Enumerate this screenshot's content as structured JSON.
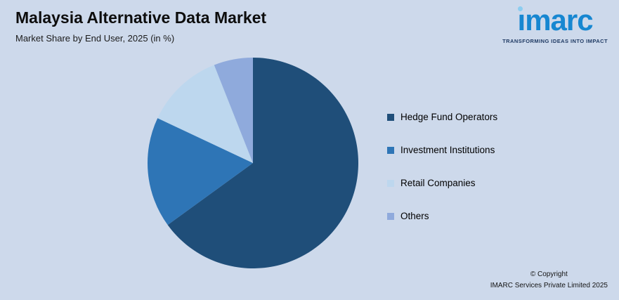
{
  "header": {
    "title": "Malaysia Alternative Data Market",
    "subtitle": "Market Share by End User, 2025 (in %)"
  },
  "logo": {
    "brand": "imarc",
    "tagline": "TRANSFORMING IDEAS INTO IMPACT",
    "brand_color": "#1787d1",
    "dot_color": "#8ccdf0",
    "tagline_color": "#1f3a63"
  },
  "footer": {
    "copyright_line1": "© Copyright",
    "copyright_line2": "IMARC Services Private Limited 2025"
  },
  "chart_data": {
    "type": "pie",
    "title": "Malaysia Alternative Data Market",
    "subtitle": "Market Share by End User, 2025 (in %)",
    "unit": "%",
    "start_angle_deg": 0,
    "direction": "clockwise",
    "legend_position": "right",
    "background_color": "#cdd9eb",
    "slices": [
      {
        "label": "Hedge Fund Operators",
        "value": 65,
        "color": "#1f4e79"
      },
      {
        "label": "Investment Institutions",
        "value": 17,
        "color": "#2e75b6"
      },
      {
        "label": "Retail Companies",
        "value": 12,
        "color": "#bdd7ee"
      },
      {
        "label": "Others",
        "value": 6,
        "color": "#8faadc"
      }
    ]
  }
}
